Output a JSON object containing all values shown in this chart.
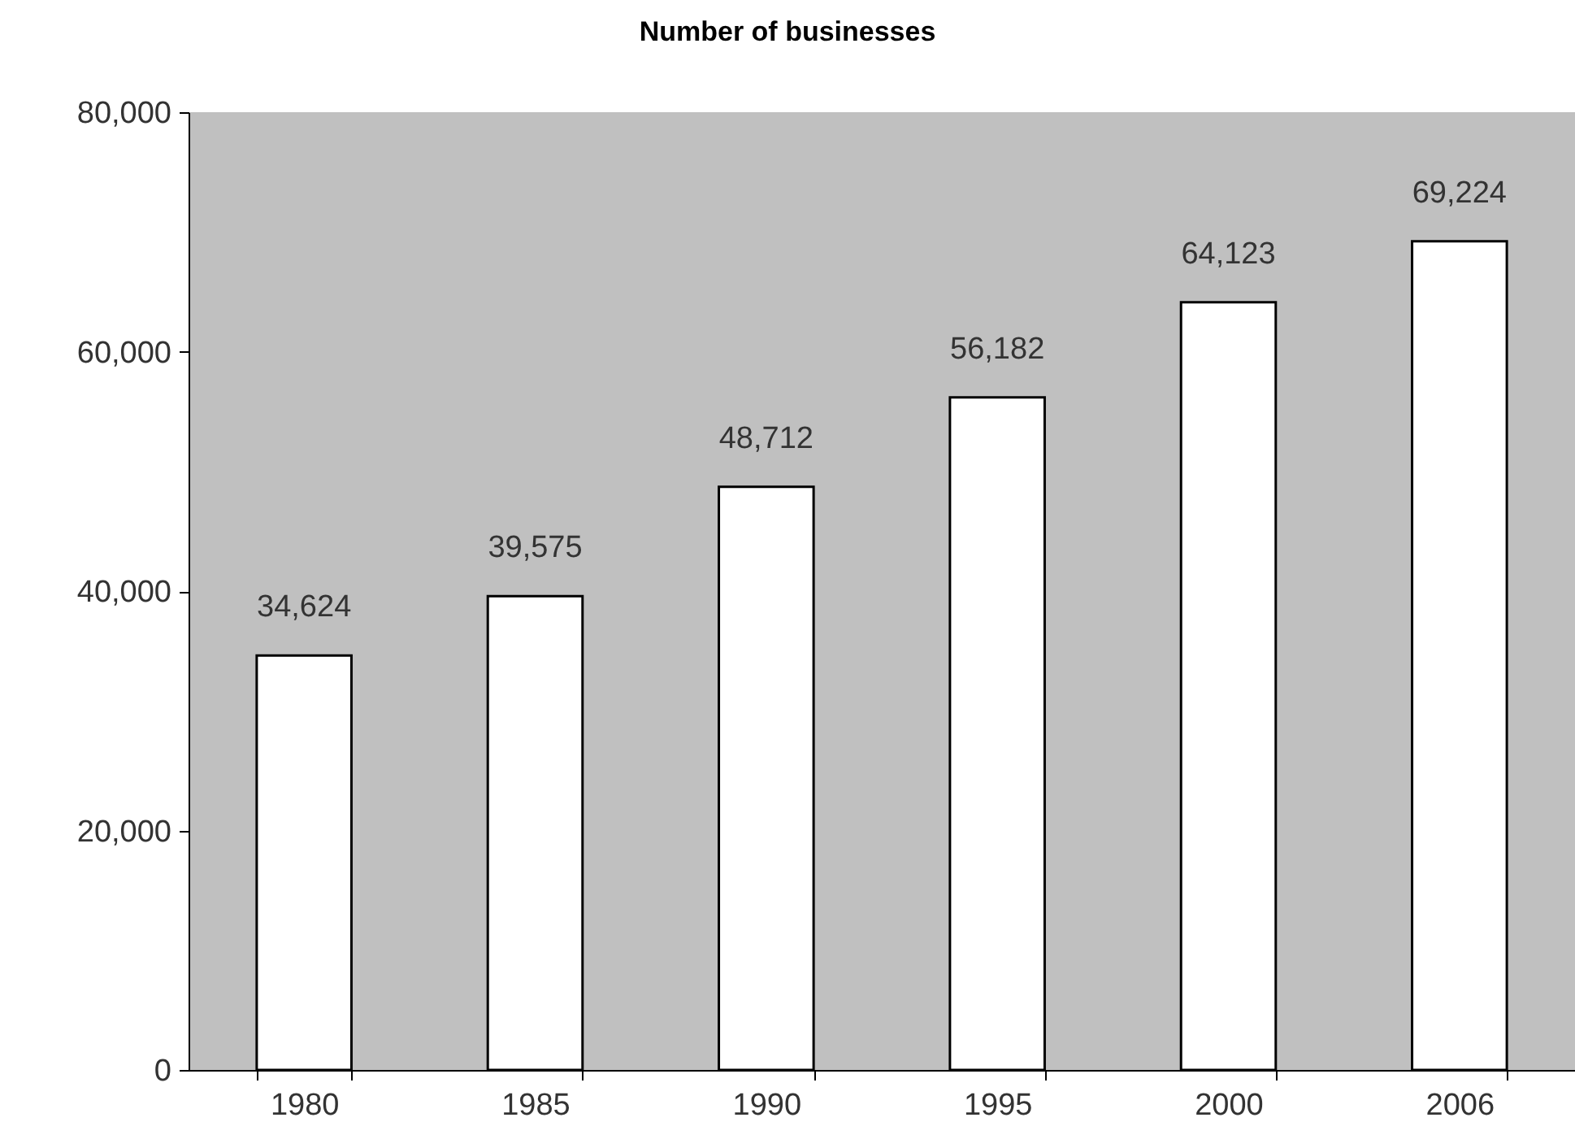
{
  "chart_data": {
    "type": "bar",
    "title": "Number of businesses",
    "categories": [
      "1980",
      "1985",
      "1990",
      "1995",
      "2000",
      "2006"
    ],
    "values": [
      34624,
      39575,
      48712,
      56182,
      64123,
      69224
    ],
    "value_labels": [
      "34,624",
      "39,575",
      "48,712",
      "56,182",
      "64,123",
      "69,224"
    ],
    "color": "#ffffff",
    "ylim": [
      0,
      80000
    ],
    "yticks": [
      0,
      {
        "value": 20000,
        "label": "20,000"
      },
      {
        "value": 40000,
        "label": "40,000"
      },
      {
        "value": 60000,
        "label": "60,000"
      },
      {
        "value": 80000,
        "label": "80,000"
      }
    ],
    "grid": false
  }
}
